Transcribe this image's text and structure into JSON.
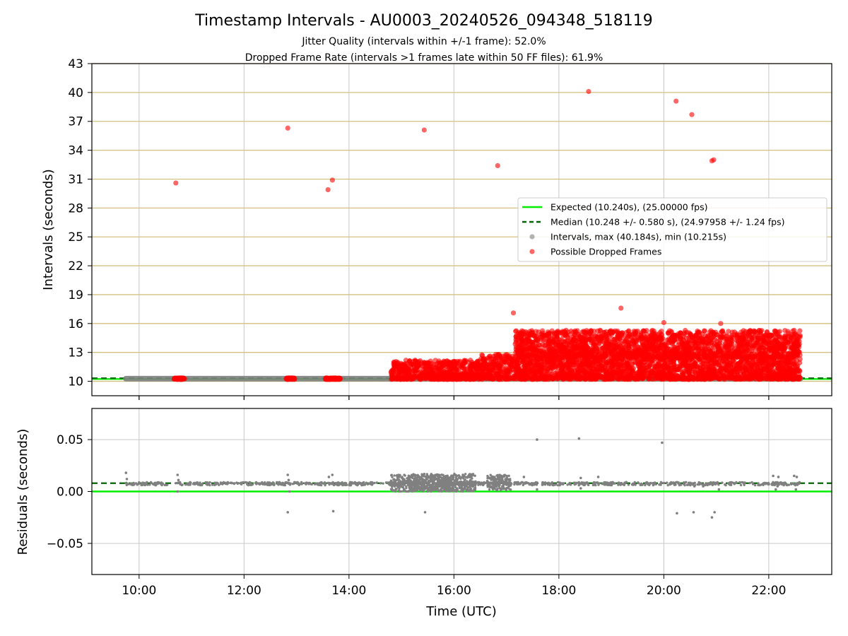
{
  "title": "Timestamp Intervals - AU0003_20240526_094348_518119",
  "subtitle_lines": [
    "Jitter Quality (intervals within +/-1 frame): 52.0%",
    "Dropped Frame Rate (intervals >1 frames late within 50 FF files): 61.9%"
  ],
  "xlabel": "Time (UTC)",
  "colors": {
    "expected": "#00ee00",
    "median": "#006400",
    "intervals": "#808080",
    "dropped": "#ff0000",
    "hgrid_top": "#d4c080",
    "grid": "#c8c8c8"
  },
  "chart_data": [
    {
      "type": "scatter",
      "panel": "top",
      "ylabel": "Intervals (seconds)",
      "xlim": [
        "09:06",
        "23:12"
      ],
      "ylim": [
        8.5,
        43
      ],
      "x_ticks": [
        "10:00",
        "12:00",
        "14:00",
        "16:00",
        "18:00",
        "20:00",
        "22:00"
      ],
      "y_ticks": [
        "10",
        "13",
        "16",
        "19",
        "22",
        "25",
        "28",
        "31",
        "34",
        "37",
        "40",
        "43"
      ],
      "legend_placement": "center-right",
      "lines": [
        {
          "name": "Expected (10.240s), (25.00000 fps)",
          "y": 10.24,
          "style": "solid"
        },
        {
          "name": "Median (10.248 +/- 0.580 s), (24.97958 +/- 1.24 fps)",
          "y": 10.248,
          "style": "dashed"
        }
      ],
      "series": [
        {
          "name": "Intervals, max (40.184s), min (10.215s)",
          "dense_bands": [
            {
              "x_range": [
                "09:45",
                "22:36"
              ],
              "y_range": [
                10.215,
                10.27
              ]
            }
          ]
        },
        {
          "name": "Possible Dropped Frames",
          "points": [
            [
              "10:42",
              30.6
            ],
            [
              "12:50",
              36.3
            ],
            [
              "13:36",
              29.9
            ],
            [
              "13:41",
              30.9
            ],
            [
              "15:26",
              36.1
            ],
            [
              "16:50",
              32.4
            ],
            [
              "17:08",
              17.1
            ],
            [
              "18:34",
              40.1
            ],
            [
              "19:11",
              17.6
            ],
            [
              "20:00",
              16.1
            ],
            [
              "20:14",
              39.1
            ],
            [
              "20:32",
              37.7
            ],
            [
              "20:55",
              32.9
            ],
            [
              "20:57",
              33.0
            ],
            [
              "21:05",
              16.0
            ],
            [
              "21:58",
              15.1
            ]
          ],
          "clusters": [
            {
              "x_range": [
                "10:40",
                "10:52"
              ],
              "y_range": [
                10.2,
                10.35
              ]
            },
            {
              "x_range": [
                "12:48",
                "12:58"
              ],
              "y_range": [
                10.2,
                10.35
              ]
            },
            {
              "x_range": [
                "13:33",
                "13:50"
              ],
              "y_range": [
                10.2,
                10.35
              ]
            },
            {
              "x_range": [
                "14:48",
                "16:30"
              ],
              "y_range": [
                10.2,
                12.2
              ]
            },
            {
              "x_range": [
                "16:30",
                "17:10"
              ],
              "y_range": [
                10.2,
                12.8
              ]
            },
            {
              "x_range": [
                "17:10",
                "22:36"
              ],
              "y_range": [
                10.2,
                12.5
              ]
            },
            {
              "x_range": [
                "17:10",
                "22:36"
              ],
              "y_range": [
                12.5,
                15.3
              ]
            }
          ]
        }
      ]
    },
    {
      "type": "scatter",
      "panel": "bottom",
      "ylabel": "Residuals (seconds)",
      "xlabel": "Time (UTC)",
      "xlim": [
        "09:06",
        "23:12"
      ],
      "ylim": [
        -0.08,
        0.08
      ],
      "y_ticks": [
        "−0.05",
        "0.00",
        "0.05"
      ],
      "x_ticks": [
        "10:00",
        "12:00",
        "14:00",
        "16:00",
        "18:00",
        "20:00",
        "22:00"
      ],
      "lines": [
        {
          "name": "Expected",
          "y": 0.0,
          "style": "solid"
        },
        {
          "name": "Median",
          "y": 0.008,
          "style": "dashed"
        }
      ],
      "series": [
        {
          "name": "Residuals",
          "points": [
            [
              "09:45",
              0.018
            ],
            [
              "09:46",
              0.012
            ],
            [
              "10:44",
              0.016
            ],
            [
              "10:45",
              0.011
            ],
            [
              "10:44",
              0.0
            ],
            [
              "12:50",
              0.016
            ],
            [
              "12:51",
              0.011
            ],
            [
              "12:50",
              -0.02
            ],
            [
              "12:52",
              0.0
            ],
            [
              "13:37",
              0.014
            ],
            [
              "13:41",
              0.016
            ],
            [
              "13:42",
              -0.019
            ],
            [
              "15:27",
              -0.02
            ],
            [
              "17:35",
              0.05
            ],
            [
              "17:35",
              0.002
            ],
            [
              "17:20",
              0.014
            ],
            [
              "18:23",
              0.051
            ],
            [
              "18:25",
              0.013
            ],
            [
              "18:25",
              0.003
            ],
            [
              "18:45",
              0.014
            ],
            [
              "19:17",
              0.009
            ],
            [
              "19:58",
              0.047
            ],
            [
              "20:15",
              -0.021
            ],
            [
              "20:15",
              0.009
            ],
            [
              "20:34",
              -0.02
            ],
            [
              "20:35",
              0.005
            ],
            [
              "20:45",
              0.005
            ],
            [
              "20:55",
              -0.025
            ],
            [
              "20:58",
              -0.02
            ],
            [
              "21:03",
              0.002
            ],
            [
              "22:05",
              0.015
            ],
            [
              "22:08",
              0.002
            ],
            [
              "22:11",
              0.014
            ],
            [
              "22:10",
              0.005
            ],
            [
              "22:29",
              0.015
            ],
            [
              "22:31",
              0.002
            ],
            [
              "22:32",
              0.014
            ]
          ],
          "dense_bands": [
            {
              "x_range": [
                "09:45",
                "22:36"
              ],
              "y_range": [
                0.006,
                0.009
              ]
            },
            {
              "x_range": [
                "14:48",
                "16:00"
              ],
              "y_range": [
                0.0,
                0.016
              ]
            },
            {
              "x_range": [
                "15:08",
                "16:25"
              ],
              "y_range": [
                0.0,
                0.017
              ]
            },
            {
              "x_range": [
                "16:38",
                "17:05"
              ],
              "y_range": [
                0.001,
                0.016
              ]
            }
          ]
        }
      ]
    }
  ]
}
